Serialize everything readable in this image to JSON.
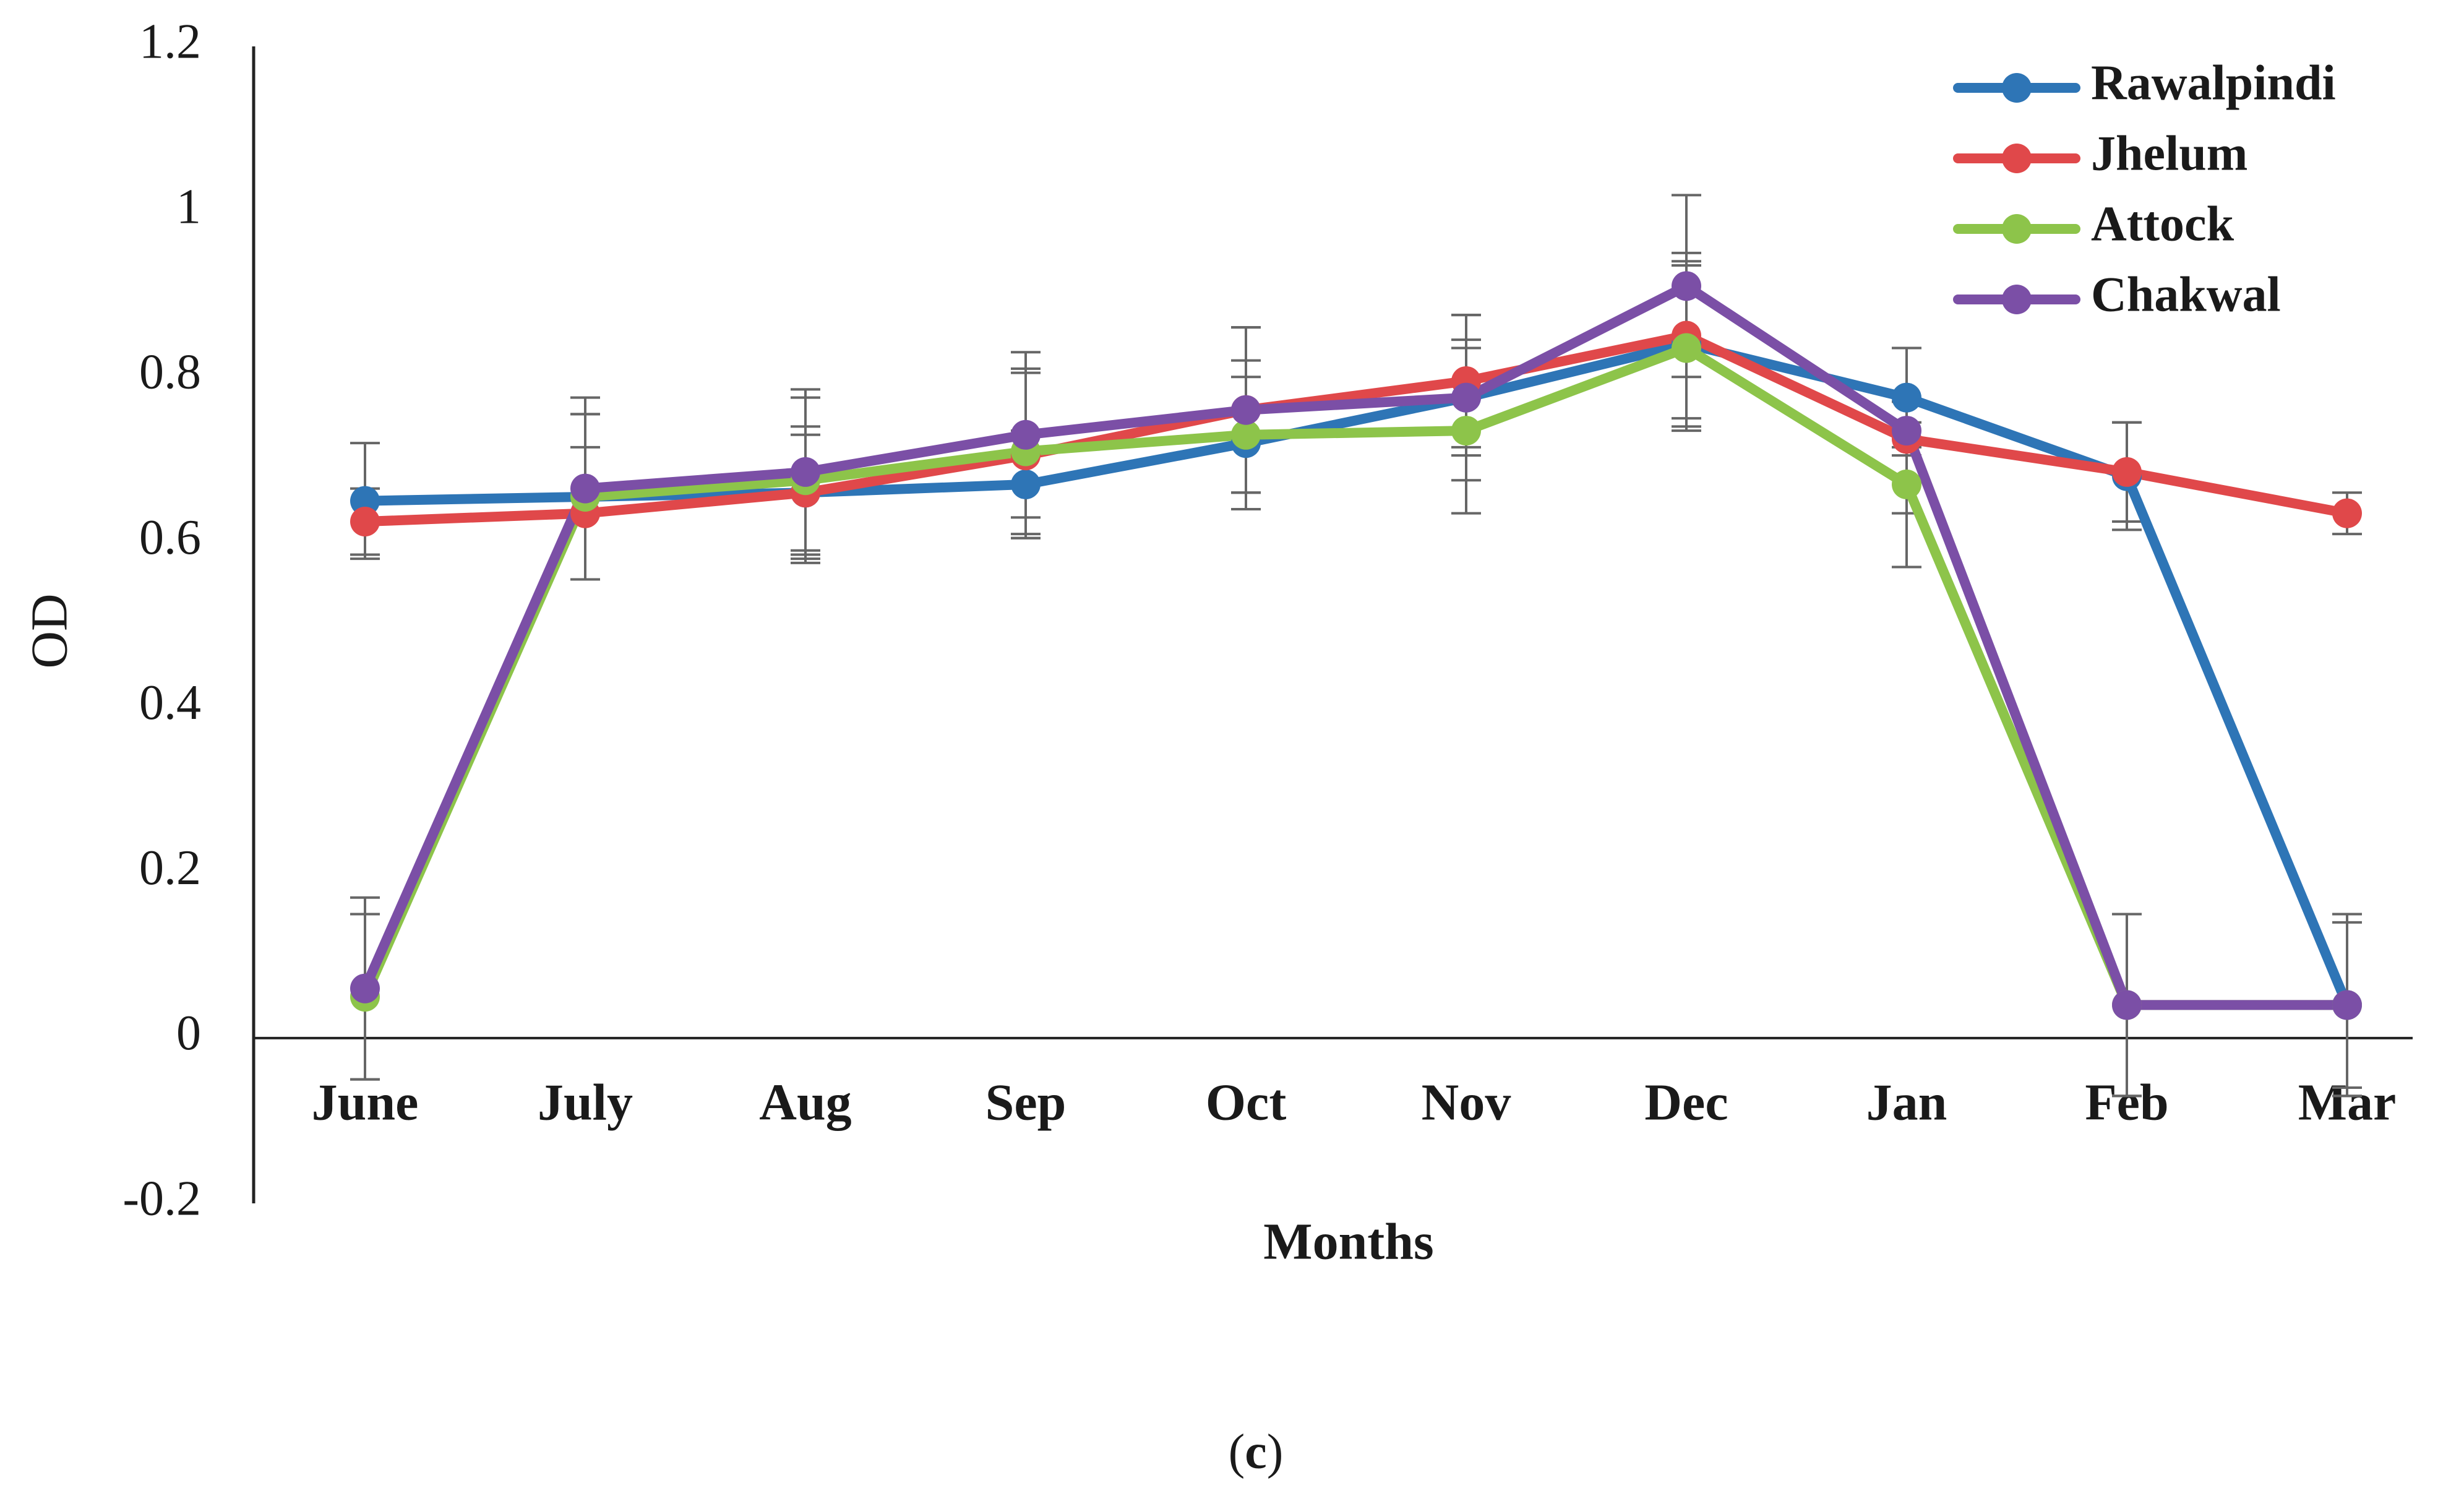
{
  "chart_data": {
    "type": "line",
    "title": "",
    "xlabel": "Months",
    "ylabel": "OD",
    "ylim": [
      -0.2,
      1.2
    ],
    "yticks": [
      "1.2",
      "1",
      "0.8",
      "0.6",
      "0.4",
      "0.2",
      "0",
      "-0.2"
    ],
    "ytick_values": [
      1.2,
      1.0,
      0.8,
      0.6,
      0.4,
      0.2,
      0.0,
      -0.2
    ],
    "categories": [
      "June",
      "July",
      "Aug",
      "Sep",
      "Oct",
      "Nov",
      "Dec",
      "Jan",
      "Feb",
      "Mar"
    ],
    "legend_position": "top-right",
    "grid": false,
    "series": [
      {
        "name": "Rawalpindi",
        "color": "#2e75b6",
        "values": [
          0.65,
          0.655,
          0.66,
          0.67,
          0.72,
          0.775,
          0.84,
          0.775,
          0.68,
          0.04
        ],
        "errors": [
          0.07,
          0.1,
          0.08,
          0.065,
          0.08,
          0.07,
          0.1,
          0.06,
          0.065,
          0.11
        ]
      },
      {
        "name": "Jhelum",
        "color": "#e0484a",
        "values": [
          0.625,
          0.635,
          0.66,
          0.705,
          0.76,
          0.795,
          0.85,
          0.725,
          0.685,
          0.635
        ],
        "errors": [
          0.04,
          0.08,
          0.07,
          0.1,
          0.1,
          0.08,
          0.1,
          0.02,
          0.06,
          0.025
        ]
      },
      {
        "name": "Attock",
        "color": "#8dc44a",
        "values": [
          0.05,
          0.655,
          0.675,
          0.71,
          0.73,
          0.735,
          0.835,
          0.67,
          0.04,
          0.04
        ],
        "errors": [
          0.1,
          0.1,
          0.1,
          0.1,
          0.09,
          0.1,
          0.1,
          0.1,
          0.11,
          0.11
        ]
      },
      {
        "name": "Chakwal",
        "color": "#7b4fa6",
        "values": [
          0.06,
          0.665,
          0.685,
          0.73,
          0.76,
          0.775,
          0.91,
          0.735,
          0.04,
          0.04
        ],
        "errors": [
          0.11,
          0.11,
          0.1,
          0.1,
          0.1,
          0.1,
          0.11,
          0.1,
          0.11,
          0.1
        ]
      }
    ]
  },
  "caption": {
    "open": "(",
    "letter": "c",
    "close": ")"
  }
}
